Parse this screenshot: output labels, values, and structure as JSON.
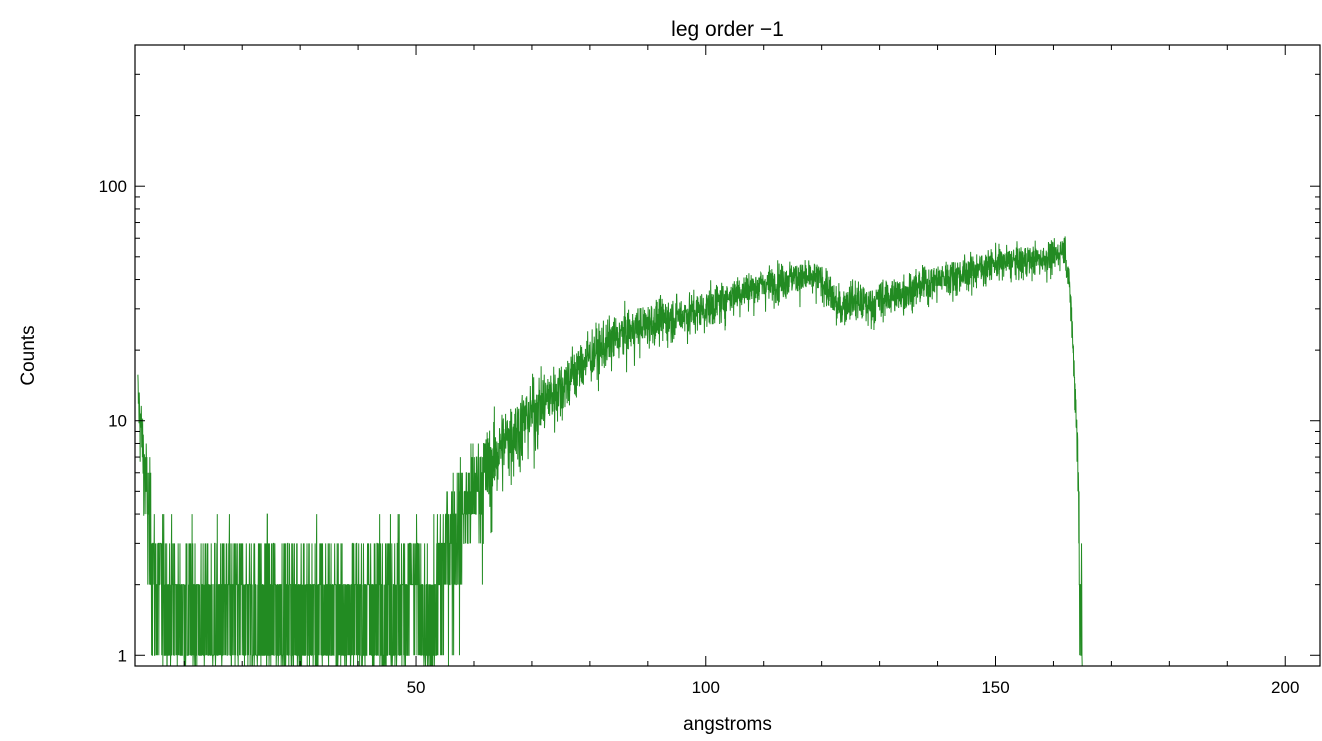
{
  "chart_data": {
    "type": "line",
    "title": "leg order −1",
    "xlabel": "angstroms",
    "ylabel": "Counts",
    "xlim": [
      1.5,
      206
    ],
    "ylim": [
      0.9,
      400
    ],
    "yscale": "log",
    "grid": false,
    "line_color": "#228b22",
    "x_ticks": [
      50,
      100,
      150,
      200
    ],
    "x_tick_labels": [
      "50",
      "100",
      "150",
      "200"
    ],
    "y_ticks": [
      1,
      10,
      100
    ],
    "y_tick_labels": [
      "1",
      "10",
      "100"
    ],
    "series": [
      {
        "name": "",
        "x": [
          2,
          5,
          10,
          20,
          30,
          40,
          50,
          52,
          55,
          60,
          65,
          70,
          75,
          80,
          85,
          90,
          95,
          100,
          105,
          110,
          115,
          120,
          123,
          125,
          128,
          130,
          135,
          140,
          145,
          150,
          155,
          160,
          162,
          163,
          164,
          165
        ],
        "y": [
          13,
          2,
          1.6,
          1.6,
          1.6,
          1.6,
          2,
          1,
          3,
          5,
          8,
          11,
          14,
          19,
          23,
          26,
          28,
          30,
          35,
          38,
          41,
          40,
          30,
          33,
          31,
          33,
          36,
          40,
          43,
          47,
          48,
          50,
          55,
          32,
          10,
          1
        ]
      }
    ]
  }
}
